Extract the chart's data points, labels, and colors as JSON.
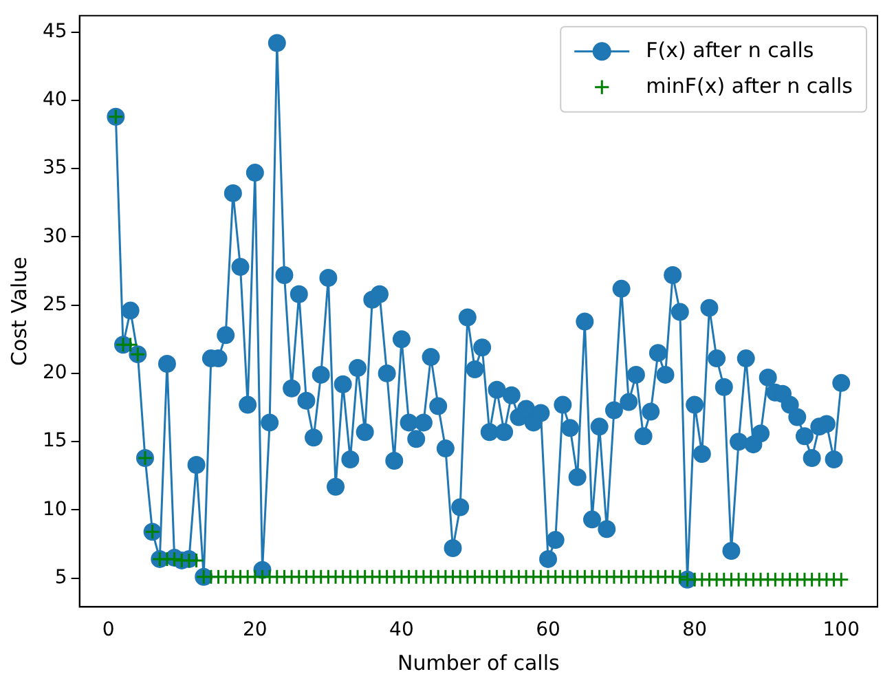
{
  "chart_data": {
    "type": "line",
    "xlabel": "Number of calls",
    "ylabel": "Cost Value",
    "x": [
      1,
      2,
      3,
      4,
      5,
      6,
      7,
      8,
      9,
      10,
      11,
      12,
      13,
      14,
      15,
      16,
      17,
      18,
      19,
      20,
      21,
      22,
      23,
      24,
      25,
      26,
      27,
      28,
      29,
      30,
      31,
      32,
      33,
      34,
      35,
      36,
      37,
      38,
      39,
      40,
      41,
      42,
      43,
      44,
      45,
      46,
      47,
      48,
      49,
      50,
      51,
      52,
      53,
      54,
      55,
      56,
      57,
      58,
      59,
      60,
      61,
      62,
      63,
      64,
      65,
      66,
      67,
      68,
      69,
      70,
      71,
      72,
      73,
      74,
      75,
      76,
      77,
      78,
      79,
      80,
      81,
      82,
      83,
      84,
      85,
      86,
      87,
      88,
      89,
      90,
      91,
      92,
      93,
      94,
      95,
      96,
      97,
      98,
      99,
      100
    ],
    "series": [
      {
        "name": "F(x) after n calls",
        "type": "line",
        "marker": "circle",
        "color": "#1f77b4",
        "values": [
          38.8,
          22.1,
          24.6,
          21.4,
          13.8,
          8.4,
          6.4,
          20.7,
          6.5,
          6.3,
          6.4,
          13.3,
          5.1,
          21.1,
          21.1,
          22.8,
          33.2,
          27.8,
          17.7,
          34.7,
          5.6,
          16.4,
          44.2,
          27.2,
          18.9,
          25.8,
          18.0,
          15.3,
          19.9,
          27.0,
          11.7,
          19.2,
          13.7,
          20.4,
          15.7,
          25.4,
          25.8,
          20.0,
          13.6,
          22.5,
          16.4,
          15.2,
          16.4,
          21.2,
          17.6,
          14.5,
          7.2,
          10.2,
          24.1,
          20.3,
          21.9,
          15.7,
          18.8,
          15.7,
          18.4,
          16.8,
          17.4,
          16.4,
          17.1,
          6.4,
          7.8,
          17.7,
          16.0,
          12.4,
          23.8,
          9.3,
          16.1,
          8.6,
          17.3,
          26.2,
          17.9,
          19.9,
          15.4,
          17.2,
          21.5,
          19.9,
          27.2,
          24.5,
          4.9,
          17.7,
          14.1,
          24.8,
          21.1,
          19.0,
          7.0,
          15.0,
          21.1,
          14.8,
          15.6,
          19.7,
          18.6,
          18.5,
          17.7,
          16.8,
          15.4,
          13.8,
          16.1,
          16.3,
          13.7,
          19.3
        ]
      },
      {
        "name": "minF(x) after n calls",
        "type": "scatter",
        "marker": "cross",
        "color": "#008000",
        "values": [
          38.8,
          22.1,
          22.1,
          21.4,
          13.8,
          8.4,
          6.4,
          6.4,
          6.4,
          6.3,
          6.3,
          6.3,
          5.1,
          5.1,
          5.1,
          5.1,
          5.1,
          5.1,
          5.1,
          5.1,
          5.1,
          5.1,
          5.1,
          5.1,
          5.1,
          5.1,
          5.1,
          5.1,
          5.1,
          5.1,
          5.1,
          5.1,
          5.1,
          5.1,
          5.1,
          5.1,
          5.1,
          5.1,
          5.1,
          5.1,
          5.1,
          5.1,
          5.1,
          5.1,
          5.1,
          5.1,
          5.1,
          5.1,
          5.1,
          5.1,
          5.1,
          5.1,
          5.1,
          5.1,
          5.1,
          5.1,
          5.1,
          5.1,
          5.1,
          5.1,
          5.1,
          5.1,
          5.1,
          5.1,
          5.1,
          5.1,
          5.1,
          5.1,
          5.1,
          5.1,
          5.1,
          5.1,
          5.1,
          5.1,
          5.1,
          5.1,
          5.1,
          5.1,
          4.9,
          4.9,
          4.9,
          4.9,
          4.9,
          4.9,
          4.9,
          4.9,
          4.9,
          4.9,
          4.9,
          4.9,
          4.9,
          4.9,
          4.9,
          4.9,
          4.9,
          4.9,
          4.9,
          4.9,
          4.9,
          4.9
        ]
      }
    ],
    "xlim": [
      -3.95,
      104.95
    ],
    "xticks": [
      0,
      20,
      40,
      60,
      80,
      100
    ],
    "ylim": [
      2.9,
      46.2
    ],
    "yticks": [
      5,
      10,
      15,
      20,
      25,
      30,
      35,
      40,
      45
    ],
    "grid": false,
    "legend": "top right"
  }
}
